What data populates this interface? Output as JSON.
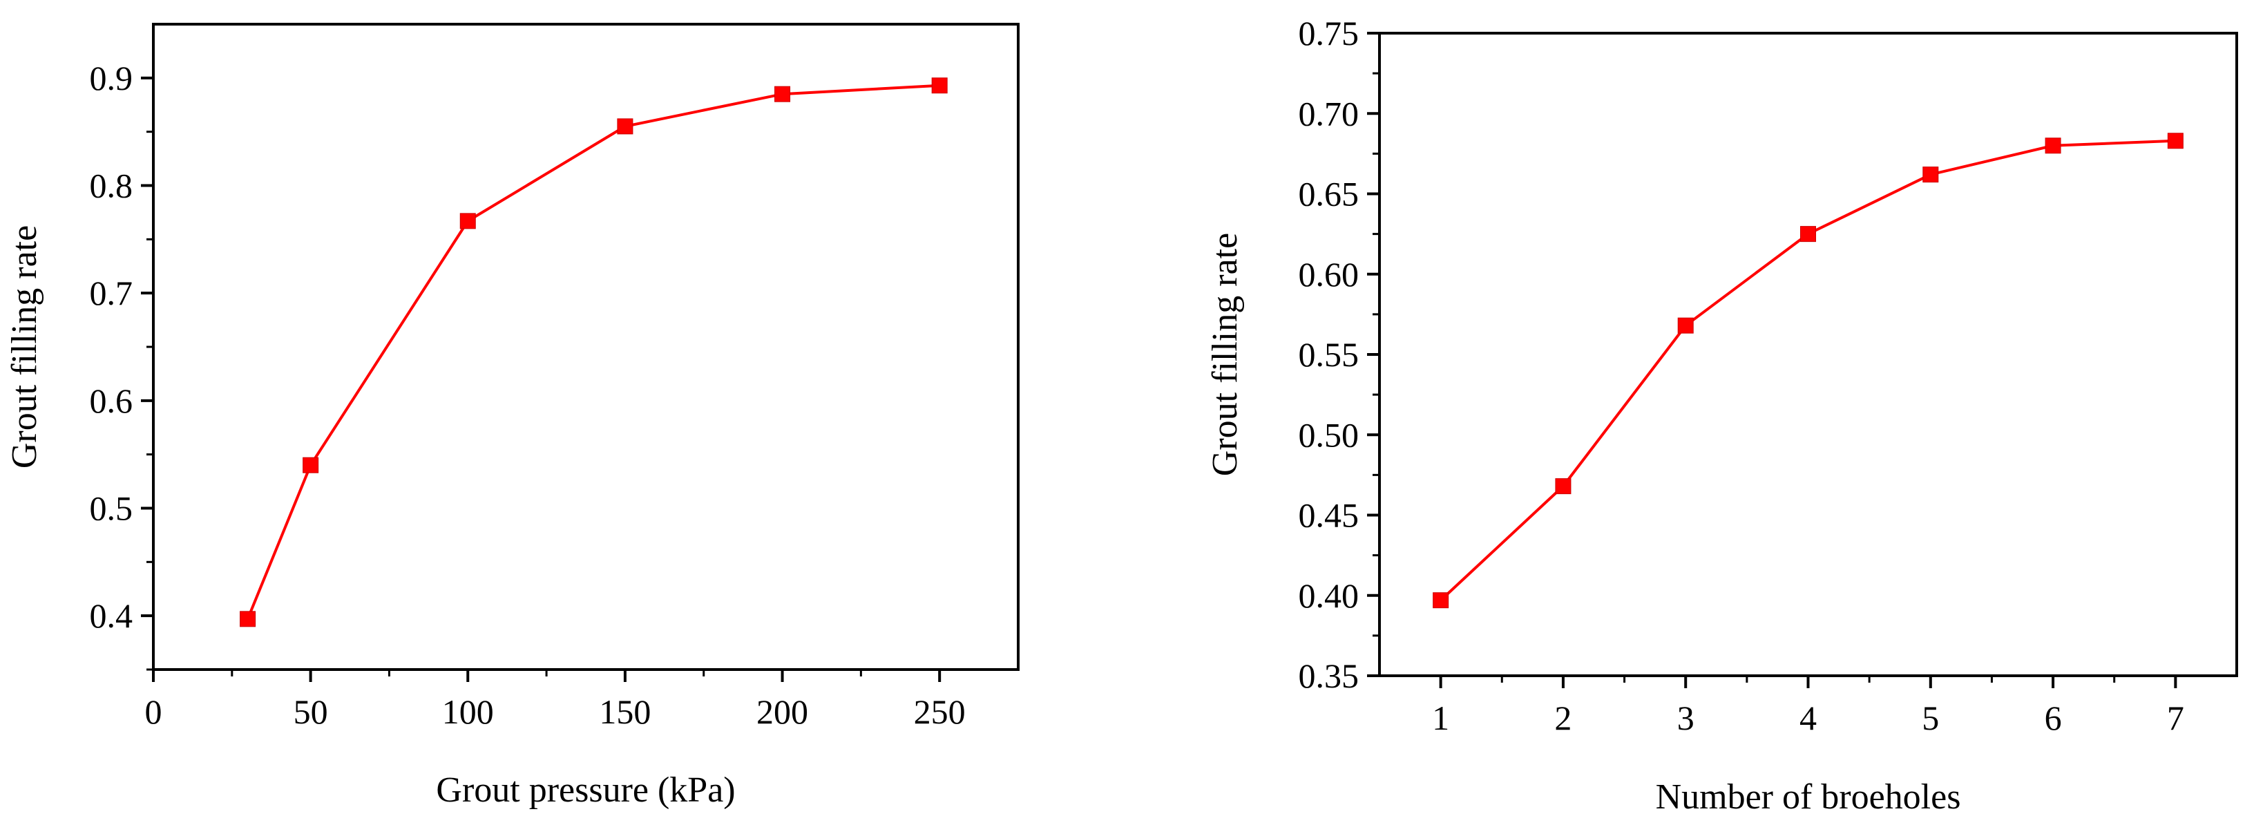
{
  "chart_data": [
    {
      "type": "line",
      "title": "",
      "xlabel": "Grout pressure (kPa)",
      "ylabel": "Grout filling rate",
      "xlim": [
        0,
        275
      ],
      "ylim": [
        0.35,
        0.95
      ],
      "xticks": [
        0,
        50,
        100,
        150,
        200,
        250
      ],
      "xtick_labels": [
        "0",
        "50",
        "100",
        "150",
        "200",
        "250"
      ],
      "yticks": [
        0.4,
        0.5,
        0.6,
        0.7,
        0.8,
        0.9
      ],
      "ytick_labels": [
        "0.4",
        "0.5",
        "0.6",
        "0.7",
        "0.8",
        "0.9"
      ],
      "grid": false,
      "series": [
        {
          "color": "#ff0000",
          "marker": "square",
          "x": [
            30,
            50,
            100,
            150,
            200,
            250
          ],
          "y": [
            0.397,
            0.54,
            0.767,
            0.855,
            0.885,
            0.893
          ]
        }
      ]
    },
    {
      "type": "line",
      "title": "",
      "xlabel": "Number of broeholes",
      "ylabel": "Grout filling rate",
      "xlim": [
        0.5,
        7.5
      ],
      "ylim": [
        0.35,
        0.75
      ],
      "xticks": [
        1,
        2,
        3,
        4,
        5,
        6,
        7
      ],
      "xtick_labels": [
        "1",
        "2",
        "3",
        "4",
        "5",
        "6",
        "7"
      ],
      "yticks": [
        0.35,
        0.4,
        0.45,
        0.5,
        0.55,
        0.6,
        0.65,
        0.7,
        0.75
      ],
      "ytick_labels": [
        "0.35",
        "0.40",
        "0.45",
        "0.50",
        "0.55",
        "0.60",
        "0.65",
        "0.70",
        "0.75"
      ],
      "grid": false,
      "series": [
        {
          "color": "#ff0000",
          "marker": "square",
          "x": [
            1,
            2,
            3,
            4,
            5,
            6,
            7
          ],
          "y": [
            0.397,
            0.468,
            0.568,
            0.625,
            0.662,
            0.68,
            0.683
          ]
        }
      ]
    }
  ]
}
